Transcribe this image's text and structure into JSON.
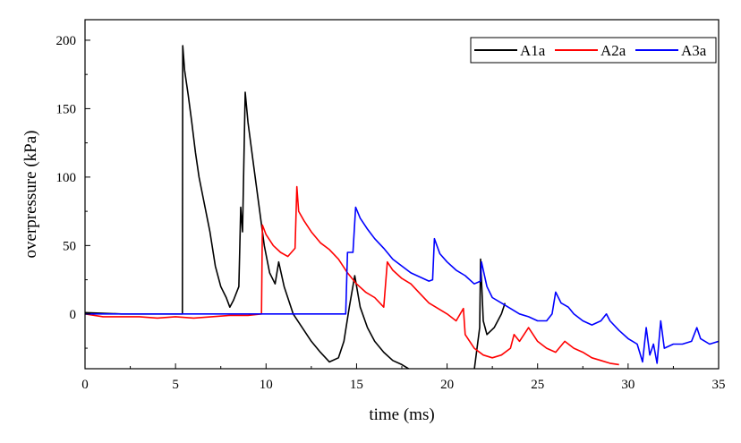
{
  "chart_data": {
    "type": "line",
    "xlabel": "time (ms)",
    "ylabel": "overpressure (kPa)",
    "xlim": [
      0,
      35
    ],
    "ylim": [
      -40,
      215
    ],
    "xticks": [
      0,
      5,
      10,
      15,
      20,
      25,
      30,
      35
    ],
    "yticks": [
      0,
      50,
      100,
      150,
      200
    ],
    "grid": false,
    "legend_position": "top-right",
    "series": [
      {
        "name": "A1a",
        "color": "#000000",
        "points": [
          [
            0,
            1
          ],
          [
            2,
            0
          ],
          [
            4,
            0
          ],
          [
            5.38,
            0
          ],
          [
            5.4,
            196
          ],
          [
            5.5,
            178
          ],
          [
            5.7,
            160
          ],
          [
            5.9,
            140
          ],
          [
            6.1,
            118
          ],
          [
            6.3,
            100
          ],
          [
            6.6,
            80
          ],
          [
            6.9,
            60
          ],
          [
            7.2,
            35
          ],
          [
            7.5,
            20
          ],
          [
            7.8,
            12
          ],
          [
            8.0,
            5
          ],
          [
            8.2,
            10
          ],
          [
            8.5,
            20
          ],
          [
            8.6,
            78
          ],
          [
            8.7,
            60
          ],
          [
            8.85,
            162
          ],
          [
            9.0,
            140
          ],
          [
            9.3,
            110
          ],
          [
            9.6,
            80
          ],
          [
            9.9,
            50
          ],
          [
            10.2,
            30
          ],
          [
            10.5,
            22
          ],
          [
            10.7,
            38
          ],
          [
            11.0,
            20
          ],
          [
            11.5,
            0
          ],
          [
            12.0,
            -10
          ],
          [
            12.5,
            -20
          ],
          [
            13.0,
            -28
          ],
          [
            13.5,
            -35
          ],
          [
            14.0,
            -32
          ],
          [
            14.3,
            -20
          ],
          [
            14.6,
            5
          ],
          [
            14.9,
            28
          ],
          [
            15.2,
            5
          ],
          [
            15.6,
            -10
          ],
          [
            16.0,
            -20
          ],
          [
            16.5,
            -28
          ],
          [
            17.0,
            -34
          ],
          [
            17.5,
            -37
          ],
          [
            18.0,
            -41
          ],
          [
            20.0,
            -41
          ],
          [
            21.5,
            -41
          ],
          [
            21.8,
            -10
          ],
          [
            21.85,
            40
          ],
          [
            22.0,
            -5
          ],
          [
            22.2,
            -15
          ],
          [
            22.6,
            -10
          ],
          [
            23.0,
            0
          ],
          [
            23.2,
            8
          ]
        ]
      },
      {
        "name": "A2a",
        "color": "#ff0000",
        "points": [
          [
            0,
            0
          ],
          [
            1,
            -2
          ],
          [
            2,
            -2
          ],
          [
            3,
            -2
          ],
          [
            4,
            -3
          ],
          [
            5,
            -2
          ],
          [
            6,
            -3
          ],
          [
            7,
            -2
          ],
          [
            8,
            -1
          ],
          [
            9,
            -1
          ],
          [
            9.75,
            0
          ],
          [
            9.8,
            65
          ],
          [
            10.0,
            58
          ],
          [
            10.4,
            50
          ],
          [
            10.8,
            45
          ],
          [
            11.2,
            42
          ],
          [
            11.6,
            48
          ],
          [
            11.7,
            93
          ],
          [
            11.8,
            75
          ],
          [
            12.1,
            68
          ],
          [
            12.5,
            60
          ],
          [
            13.0,
            52
          ],
          [
            13.5,
            47
          ],
          [
            14.0,
            40
          ],
          [
            14.5,
            30
          ],
          [
            15.0,
            22
          ],
          [
            15.5,
            16
          ],
          [
            16.0,
            12
          ],
          [
            16.5,
            5
          ],
          [
            16.7,
            38
          ],
          [
            17.0,
            32
          ],
          [
            17.5,
            26
          ],
          [
            18.0,
            22
          ],
          [
            18.5,
            15
          ],
          [
            19.0,
            8
          ],
          [
            20.0,
            0
          ],
          [
            20.5,
            -5
          ],
          [
            20.9,
            4
          ],
          [
            21.0,
            -15
          ],
          [
            21.5,
            -25
          ],
          [
            22.0,
            -30
          ],
          [
            22.5,
            -32
          ],
          [
            23.0,
            -30
          ],
          [
            23.5,
            -25
          ],
          [
            23.7,
            -15
          ],
          [
            24.0,
            -20
          ],
          [
            24.5,
            -10
          ],
          [
            25.0,
            -20
          ],
          [
            25.5,
            -25
          ],
          [
            26.0,
            -28
          ],
          [
            26.5,
            -20
          ],
          [
            27.0,
            -25
          ],
          [
            27.5,
            -28
          ],
          [
            28.0,
            -32
          ],
          [
            28.5,
            -34
          ],
          [
            29.0,
            -36
          ],
          [
            29.5,
            -37
          ]
        ]
      },
      {
        "name": "A3a",
        "color": "#0000ff",
        "points": [
          [
            0,
            0
          ],
          [
            2,
            0
          ],
          [
            4,
            0
          ],
          [
            6,
            0
          ],
          [
            8,
            0
          ],
          [
            10,
            0
          ],
          [
            12,
            0
          ],
          [
            14.4,
            0
          ],
          [
            14.5,
            45
          ],
          [
            14.8,
            45
          ],
          [
            14.95,
            78
          ],
          [
            15.2,
            70
          ],
          [
            15.6,
            62
          ],
          [
            16.0,
            55
          ],
          [
            16.5,
            48
          ],
          [
            17.0,
            40
          ],
          [
            17.5,
            35
          ],
          [
            18.0,
            30
          ],
          [
            18.5,
            27
          ],
          [
            19.0,
            24
          ],
          [
            19.2,
            25
          ],
          [
            19.3,
            55
          ],
          [
            19.6,
            44
          ],
          [
            20.0,
            38
          ],
          [
            20.5,
            32
          ],
          [
            21.0,
            28
          ],
          [
            21.5,
            22
          ],
          [
            21.85,
            24
          ],
          [
            21.9,
            38
          ],
          [
            22.2,
            20
          ],
          [
            22.5,
            12
          ],
          [
            23.0,
            8
          ],
          [
            23.5,
            4
          ],
          [
            24.0,
            0
          ],
          [
            24.5,
            -2
          ],
          [
            25.0,
            -5
          ],
          [
            25.5,
            -5
          ],
          [
            25.8,
            0
          ],
          [
            26.0,
            16
          ],
          [
            26.3,
            8
          ],
          [
            26.7,
            5
          ],
          [
            27.0,
            0
          ],
          [
            27.5,
            -5
          ],
          [
            28.0,
            -8
          ],
          [
            28.5,
            -5
          ],
          [
            28.8,
            0
          ],
          [
            29.0,
            -5
          ],
          [
            29.5,
            -12
          ],
          [
            30.0,
            -18
          ],
          [
            30.5,
            -22
          ],
          [
            30.8,
            -35
          ],
          [
            31.0,
            -10
          ],
          [
            31.2,
            -30
          ],
          [
            31.4,
            -22
          ],
          [
            31.6,
            -36
          ],
          [
            31.8,
            -5
          ],
          [
            32.0,
            -25
          ],
          [
            32.5,
            -22
          ],
          [
            33.0,
            -22
          ],
          [
            33.5,
            -20
          ],
          [
            33.8,
            -10
          ],
          [
            34.0,
            -18
          ],
          [
            34.5,
            -22
          ],
          [
            35.0,
            -20
          ]
        ]
      }
    ]
  }
}
